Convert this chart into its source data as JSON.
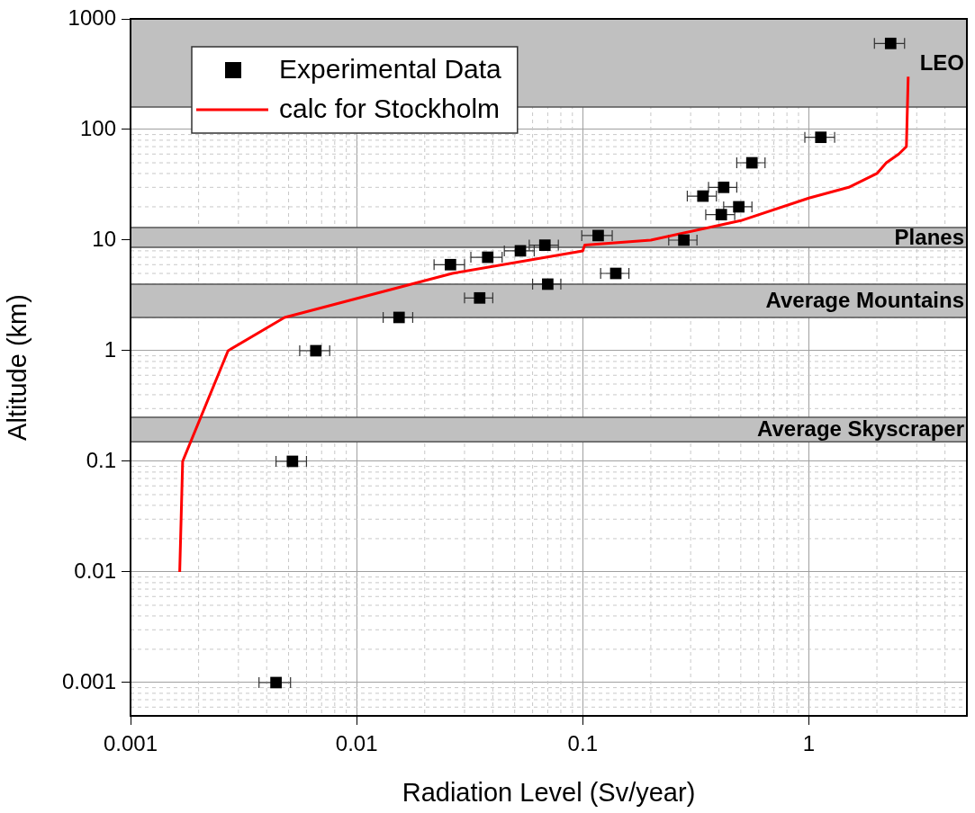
{
  "chart_data": {
    "type": "scatter",
    "xlabel": "Radiation Level (Sv/year)",
    "ylabel": "Altitude (km)",
    "log": "xy",
    "grid": true,
    "legend": "top left",
    "marker": "square",
    "xlim": [
      0.001,
      5
    ],
    "xticks": [
      0.001,
      0.01,
      0.1,
      1
    ],
    "ylim": [
      0.0005,
      1000
    ],
    "yticks": [
      0.001,
      0.01,
      0.1,
      1,
      10,
      100,
      1000
    ],
    "bands": [
      {
        "axis": "y",
        "from": 160,
        "to": 1000,
        "label": "LEO",
        "color": "#c0c0c0"
      },
      {
        "axis": "y",
        "from": 8.6,
        "to": 13,
        "label": "Planes",
        "color": "#c0c0c0"
      },
      {
        "axis": "y",
        "from": 2,
        "to": 4,
        "label": "Average Mountains",
        "color": "#c0c0c0"
      },
      {
        "axis": "y",
        "from": 0.15,
        "to": 0.25,
        "label": "Average Skyscraper",
        "color": "#c0c0c0"
      }
    ],
    "series": [
      {
        "name": "Experimental Data",
        "type": "scatter",
        "color": "#000000",
        "x": [
          0.0044,
          0.0052,
          0.0066,
          0.0154,
          0.026,
          0.035,
          0.038,
          0.053,
          0.068,
          0.07,
          0.117,
          0.14,
          0.28,
          0.34,
          0.41,
          0.42,
          0.49,
          0.56,
          1.13,
          2.3
        ],
        "values": [
          0.001,
          0.1,
          1,
          2,
          6,
          3,
          7,
          8,
          9,
          4,
          11,
          5,
          10,
          25,
          17,
          30,
          20,
          50,
          85,
          600
        ],
        "xerrors": [
          0.0007,
          0.0008,
          0.001,
          0.0023,
          0.004,
          0.005,
          0.006,
          0.008,
          0.01,
          0.01,
          0.018,
          0.02,
          0.04,
          0.05,
          0.06,
          0.06,
          0.07,
          0.08,
          0.17,
          0.35
        ]
      },
      {
        "name": "calc for Stockholm",
        "type": "line",
        "color": "#ff0000",
        "marker": "none",
        "line_style": "solid",
        "x": [
          0.00165,
          0.0017,
          0.0027,
          0.0048,
          0.0265,
          0.1,
          0.102,
          0.2,
          0.5,
          1,
          1.5,
          2,
          2.2,
          2.5,
          2.7,
          2.75
        ],
        "values": [
          0.01,
          0.1,
          1,
          2,
          5,
          8,
          9,
          10,
          15,
          24,
          30,
          40,
          50,
          60,
          70,
          300
        ]
      }
    ]
  }
}
